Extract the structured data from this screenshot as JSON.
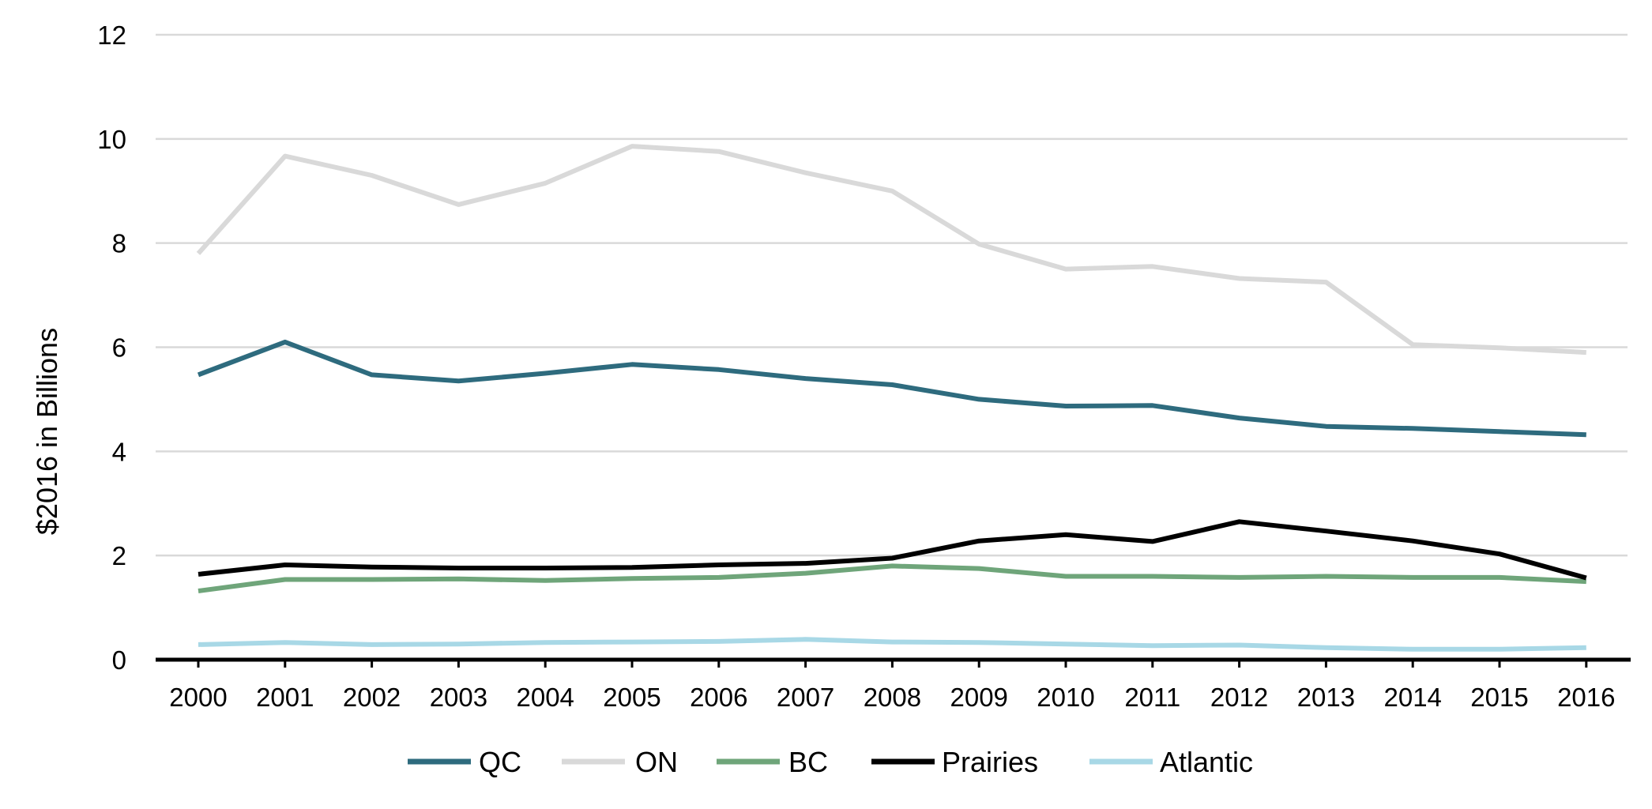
{
  "chart_data": {
    "type": "line",
    "title": "",
    "xlabel": "",
    "ylabel": "$2016 in Billions",
    "ylim": [
      0,
      12
    ],
    "yticks": [
      0,
      2,
      4,
      6,
      8,
      10,
      12
    ],
    "x": [
      "2000",
      "2001",
      "2002",
      "2003",
      "2004",
      "2005",
      "2006",
      "2007",
      "2008",
      "2009",
      "2010",
      "2011",
      "2012",
      "2013",
      "2014",
      "2015",
      "2016"
    ],
    "grid": true,
    "legend_position": "bottom",
    "series": [
      {
        "name": "QC",
        "color": "#2e6b7e",
        "values": [
          5.47,
          6.1,
          5.47,
          5.35,
          5.5,
          5.67,
          5.57,
          5.4,
          5.28,
          5.0,
          4.87,
          4.88,
          4.64,
          4.48,
          4.44,
          4.38,
          4.32
        ]
      },
      {
        "name": "ON",
        "color": "#d9d9d9",
        "values": [
          7.8,
          9.67,
          9.3,
          8.74,
          9.15,
          9.86,
          9.76,
          9.35,
          9.0,
          7.98,
          7.5,
          7.55,
          7.32,
          7.25,
          6.05,
          5.99,
          5.9
        ]
      },
      {
        "name": "BC",
        "color": "#6fa57a",
        "values": [
          1.32,
          1.54,
          1.54,
          1.55,
          1.52,
          1.56,
          1.58,
          1.66,
          1.8,
          1.75,
          1.6,
          1.6,
          1.58,
          1.6,
          1.58,
          1.58,
          1.5
        ]
      },
      {
        "name": "Prairies",
        "color": "#000000",
        "values": [
          1.64,
          1.82,
          1.78,
          1.76,
          1.76,
          1.77,
          1.82,
          1.85,
          1.95,
          2.28,
          2.4,
          2.27,
          2.65,
          2.47,
          2.28,
          2.03,
          1.57
        ]
      },
      {
        "name": "Atlantic",
        "color": "#a8d8e6",
        "values": [
          0.29,
          0.33,
          0.29,
          0.3,
          0.33,
          0.34,
          0.35,
          0.39,
          0.34,
          0.33,
          0.3,
          0.27,
          0.28,
          0.23,
          0.2,
          0.2,
          0.23
        ]
      }
    ]
  }
}
